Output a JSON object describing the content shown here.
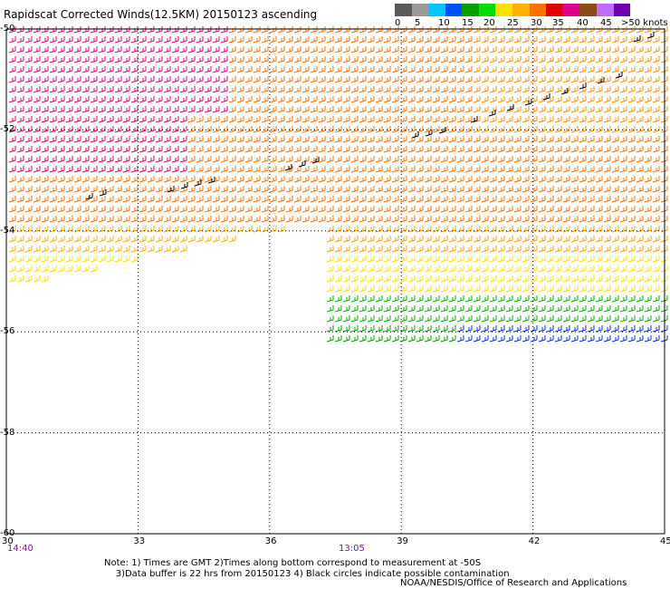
{
  "title": "Rapidscat Corrected Winds(12.5KM) 20150123 ascending",
  "legend": {
    "colors": [
      "#5a5a5a",
      "#9a9a9a",
      "#00c8ff",
      "#0050ff",
      "#00a000",
      "#00dc00",
      "#ffe000",
      "#ffb000",
      "#ff7000",
      "#e00000",
      "#e00090",
      "#8a4a1a",
      "#c06cff",
      "#7000b0"
    ],
    "labels": [
      "0",
      "5",
      "10",
      "15",
      "20",
      "25",
      "30",
      "35",
      "40",
      "45",
      ">50 knots"
    ]
  },
  "axes": {
    "lat_labels": [
      "-50",
      "-52",
      "-54",
      "-56",
      "-58",
      "-60"
    ],
    "lon_labels": [
      "30",
      "33",
      "36",
      "39",
      "42",
      "45"
    ]
  },
  "times": [
    "14:40",
    "13:05"
  ],
  "notes": [
    "Note: 1) Times are GMT 2)Times along bottom correspond to measurement at -50S",
    "3)Data buffer is 22 hrs from 20150123 4) Black circles indicate possible contamination"
  ],
  "credit": "NOAA/NESDIS/Office of Research and Applications",
  "chart_data": {
    "type": "wind_barbs_map",
    "title": "Rapidscat Corrected Winds(12.5KM) 20150123 ascending",
    "lon_range": [
      30,
      45
    ],
    "lat_range": [
      -60,
      -50
    ],
    "lon_ticks": [
      30,
      33,
      36,
      39,
      42,
      45
    ],
    "lat_ticks": [
      -50,
      -52,
      -54,
      -56,
      -58,
      -60
    ],
    "speed_scale_knots": [
      0,
      5,
      10,
      15,
      20,
      25,
      30,
      35,
      40,
      45,
      50
    ],
    "grid": "dotted",
    "swath_times_gmt": [
      "14:40",
      "13:05"
    ]
  }
}
